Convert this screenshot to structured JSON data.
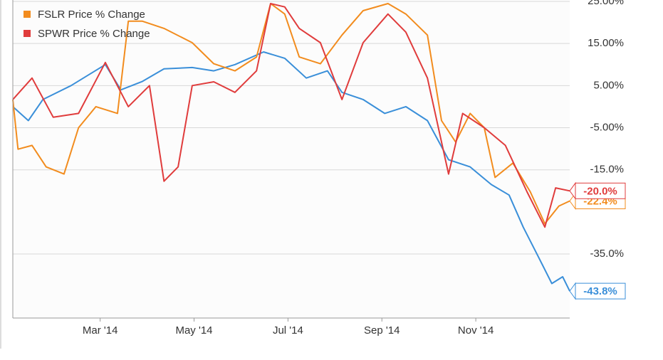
{
  "chart_data": {
    "type": "line",
    "xlim": [
      0.14,
      12.0
    ],
    "xticks": [
      {
        "value": 2,
        "label": "Mar '14"
      },
      {
        "value": 4,
        "label": "May '14"
      },
      {
        "value": 6,
        "label": "Jul '14"
      },
      {
        "value": 8,
        "label": "Sep '14"
      },
      {
        "value": 10,
        "label": "Nov '14"
      }
    ],
    "ylim": [
      -50.2,
      25.3
    ],
    "yticks": [
      {
        "value": 25,
        "label": "25.00%"
      },
      {
        "value": 15,
        "label": "15.00%"
      },
      {
        "value": 5,
        "label": "5.00%"
      },
      {
        "value": -5,
        "label": "-5.00%"
      },
      {
        "value": -15,
        "label": "-15.0%"
      },
      {
        "value": -35,
        "label": "-35.0%"
      }
    ],
    "grid": true,
    "series": [
      {
        "color": "#3a8fd9",
        "end_label": "-43.8%",
        "x": [
          0.14,
          0.47,
          0.78,
          1.38,
          2.11,
          2.44,
          2.9,
          3.36,
          3.96,
          4.42,
          4.87,
          5.48,
          5.93,
          6.39,
          6.84,
          7.15,
          7.6,
          8.06,
          8.51,
          8.97,
          9.42,
          9.88,
          10.33,
          10.71,
          11.01,
          11.32,
          11.62,
          11.85,
          12.0
        ],
        "values": [
          0.0,
          -3.3,
          1.7,
          5,
          10,
          4,
          6,
          9,
          9.3,
          8.5,
          10,
          13,
          11.5,
          6.8,
          8.5,
          3.4,
          1.7,
          -1.6,
          0,
          -3.3,
          -12.6,
          -14.3,
          -18.5,
          -21,
          -28.6,
          -35.4,
          -42,
          -40.4,
          -43.8
        ]
      },
      {
        "name": "FSLR Price % Change",
        "color": "#f28c1e",
        "end_label": "-22.4%",
        "x": [
          0.14,
          0.25,
          0.55,
          0.85,
          1.23,
          1.54,
          1.91,
          2.37,
          2.6,
          2.9,
          3.36,
          3.96,
          4.42,
          4.87,
          5.33,
          5.63,
          5.93,
          6.24,
          6.69,
          7.15,
          7.6,
          8.13,
          8.51,
          8.97,
          9.27,
          9.57,
          9.88,
          10.18,
          10.41,
          10.79,
          11.16,
          11.47,
          11.77,
          12.0
        ],
        "values": [
          1.7,
          -10.1,
          -9.2,
          -14.3,
          -16,
          -5,
          0,
          -1.6,
          20.3,
          20.3,
          18.6,
          15.2,
          10.2,
          8.5,
          11.8,
          24.5,
          22,
          11.8,
          10.2,
          17,
          22.8,
          24.5,
          22,
          17,
          -3.3,
          -8.4,
          -1.6,
          -5,
          -16.8,
          -13.4,
          -20.2,
          -27.8,
          -23.6,
          -22.4
        ]
      },
      {
        "name": "SPWR Price % Change",
        "color": "#e03c3c",
        "end_label": "-20.0%",
        "x": [
          0.14,
          0.55,
          1.0,
          1.54,
          2.11,
          2.6,
          3.05,
          3.36,
          3.66,
          3.96,
          4.42,
          4.87,
          5.33,
          5.63,
          5.93,
          6.24,
          6.69,
          7.15,
          7.6,
          8.13,
          8.51,
          8.97,
          9.42,
          9.72,
          10.18,
          10.63,
          11.09,
          11.47,
          11.7,
          12.0
        ],
        "values": [
          1.7,
          6.8,
          -2.5,
          -1.6,
          10.5,
          0,
          5,
          -17.7,
          -14.3,
          5,
          5.9,
          3.4,
          8.5,
          24.5,
          23.7,
          18.6,
          15.2,
          1.7,
          15.2,
          22,
          17.7,
          6.8,
          -16,
          -1.6,
          -5,
          -9.2,
          -20.2,
          -28.6,
          -19.3,
          -20
        ]
      }
    ]
  }
}
